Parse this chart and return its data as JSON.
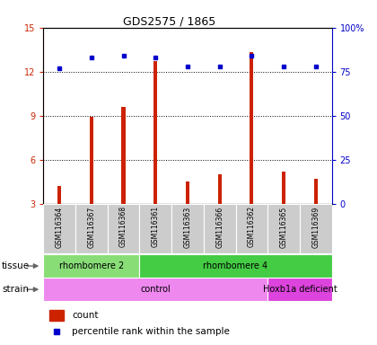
{
  "title": "GDS2575 / 1865",
  "samples": [
    "GSM116364",
    "GSM116367",
    "GSM116368",
    "GSM116361",
    "GSM116363",
    "GSM116366",
    "GSM116362",
    "GSM116365",
    "GSM116369"
  ],
  "counts": [
    4.2,
    8.9,
    9.6,
    12.7,
    4.5,
    5.0,
    13.3,
    5.2,
    4.7
  ],
  "percentile_ranks": [
    77,
    83,
    84,
    83,
    78,
    78,
    84,
    78,
    78
  ],
  "ylim_left": [
    3,
    15
  ],
  "ylim_right": [
    0,
    100
  ],
  "yticks_left": [
    3,
    6,
    9,
    12,
    15
  ],
  "ytick_labels_left": [
    "3",
    "6",
    "9",
    "12",
    "15"
  ],
  "yticks_right": [
    0,
    25,
    50,
    75,
    100
  ],
  "ytick_labels_right": [
    "0",
    "25",
    "50",
    "75",
    "100%"
  ],
  "bar_color": "#cc2200",
  "dot_color": "#0000cc",
  "tissue_groups": [
    {
      "label": "rhombomere 2",
      "start": 0,
      "end": 3,
      "color": "#88dd77"
    },
    {
      "label": "rhombomere 4",
      "start": 3,
      "end": 9,
      "color": "#44cc44"
    }
  ],
  "strain_groups": [
    {
      "label": "control",
      "start": 0,
      "end": 7,
      "color": "#ee88ee"
    },
    {
      "label": "Hoxb1a deficient",
      "start": 7,
      "end": 9,
      "color": "#dd44dd"
    }
  ],
  "tissue_label": "tissue",
  "strain_label": "strain",
  "legend_count_label": "count",
  "legend_pct_label": "percentile rank within the sample",
  "bg_color": "#ffffff",
  "axis_color_left": "#cc2200",
  "axis_color_right": "#0000cc",
  "plot_bg": "#ffffff",
  "label_bg": "#cccccc",
  "bar_width": 0.12
}
